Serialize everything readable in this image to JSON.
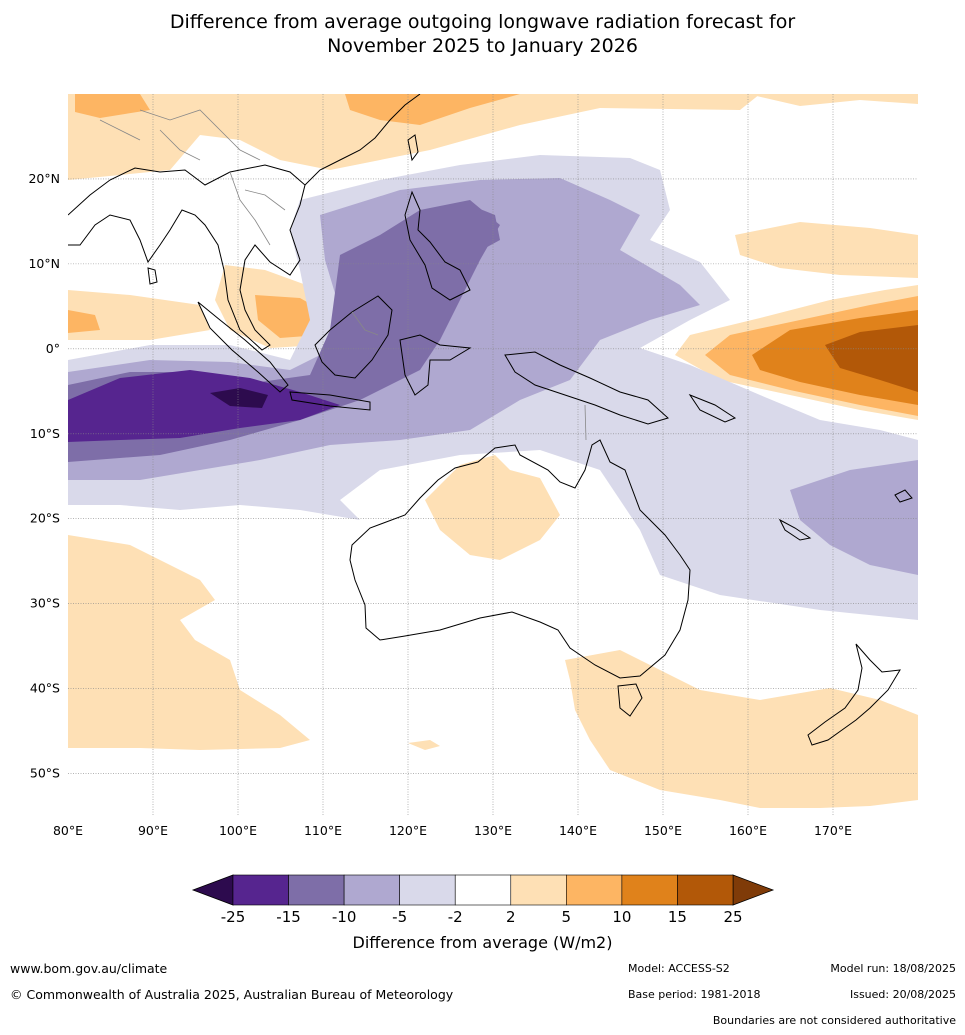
{
  "title": {
    "line1": "Difference from average outgoing longwave radiation forecast for",
    "line2": "November 2025 to January 2026"
  },
  "map": {
    "lon_labels": [
      "80°E",
      "90°E",
      "100°E",
      "110°E",
      "120°E",
      "130°E",
      "140°E",
      "150°E",
      "160°E",
      "170°E"
    ],
    "lat_labels": [
      "20°N",
      "10°N",
      "0°",
      "10°S",
      "20°S",
      "30°S",
      "40°S",
      "50°S"
    ],
    "lon_range": [
      80,
      180
    ],
    "lat_range": [
      -55,
      30
    ],
    "colors": {
      "c_m25": "#2d0b4e",
      "c_m15_25": "#56258f",
      "c_m10_15": "#7e6ea8",
      "c_m5_10": "#afa8d0",
      "c_m2_5": "#d9d9ea",
      "c_zero": "#ffffff",
      "c_2_5": "#fee0b5",
      "c_5_10": "#fdb563",
      "c_10_15": "#e0821b",
      "c_15_25": "#b25808",
      "c_25": "#7f3b08"
    }
  },
  "legend": {
    "ticks": [
      "-25",
      "-15",
      "-10",
      "-5",
      "-2",
      "2",
      "5",
      "10",
      "15",
      "25"
    ],
    "unit_label": "Difference from average (W/m2)"
  },
  "footer": {
    "url": "www.bom.gov.au/climate",
    "copyright": "© Commonwealth of Australia 2025, Australian Bureau of Meteorology",
    "model": "Model: ACCESS-S2",
    "base_period": "Base period: 1981-2018",
    "model_run": "Model run: 18/08/2025",
    "issued": "Issued: 20/08/2025",
    "boundaries": "Boundaries are not considered authoritative"
  }
}
